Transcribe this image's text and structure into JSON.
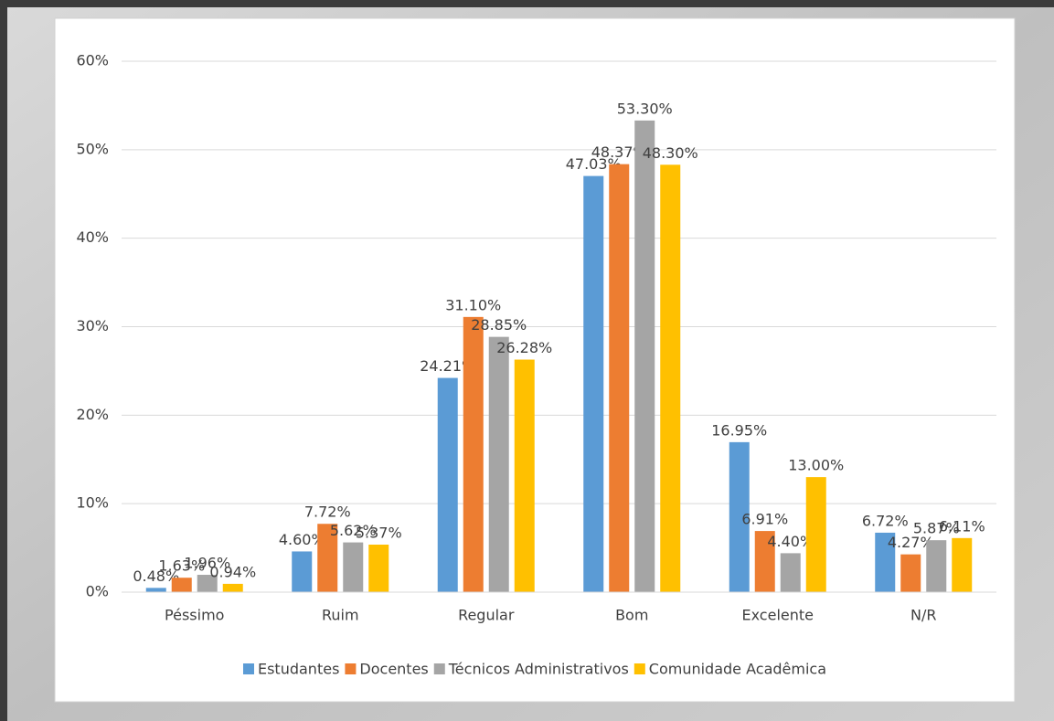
{
  "chart_data": {
    "type": "bar",
    "categories": [
      "Péssimo",
      "Ruim",
      "Regular",
      "Bom",
      "Excelente",
      "N/R"
    ],
    "series": [
      {
        "name": "Estudantes",
        "color": "#5b9bd5",
        "values": [
          0.48,
          4.6,
          24.21,
          47.03,
          16.95,
          6.72
        ],
        "value_labels": [
          "0.48%",
          "4.60%",
          "24.21%",
          "47.03%",
          "16.95%",
          "6.72%"
        ]
      },
      {
        "name": "Docentes",
        "color": "#ed7d31",
        "values": [
          1.63,
          7.72,
          31.1,
          48.37,
          6.91,
          4.27
        ],
        "value_labels": [
          "1.63%",
          "7.72%",
          "31.10%",
          "48.37%",
          "6.91%",
          "4.27%"
        ]
      },
      {
        "name": "Técnicos Administrativos",
        "color": "#a5a5a5",
        "values": [
          1.96,
          5.62,
          28.85,
          53.3,
          4.4,
          5.87
        ],
        "value_labels": [
          "1.96%",
          "5.62%",
          "28.85%",
          "53.30%",
          "4.40%",
          "5.87%"
        ]
      },
      {
        "name": "Comunidade Acadêmica",
        "color": "#ffc000",
        "values": [
          0.94,
          5.37,
          26.28,
          48.3,
          13.0,
          6.11
        ],
        "value_labels": [
          "0.94%",
          "5.37%",
          "26.28%",
          "48.30%",
          "13.00%",
          "6.11%"
        ]
      }
    ],
    "ylim": [
      0,
      60
    ],
    "yticks": [
      {
        "value": 0,
        "label": "0%"
      },
      {
        "value": 10,
        "label": "10%"
      },
      {
        "value": 20,
        "label": "20%"
      },
      {
        "value": 30,
        "label": "30%"
      },
      {
        "value": 40,
        "label": "40%"
      },
      {
        "value": 50,
        "label": "50%"
      },
      {
        "value": 60,
        "label": "60%"
      }
    ],
    "grid": true,
    "legend": "bottom"
  }
}
